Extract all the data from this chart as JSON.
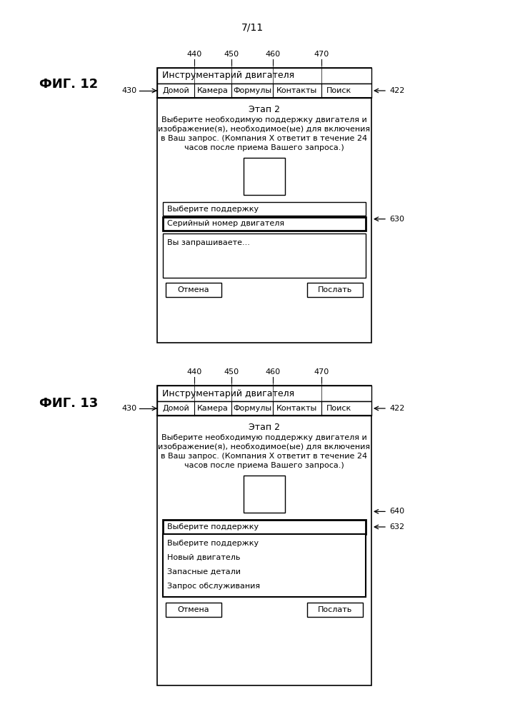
{
  "page_label": "7/11",
  "fig12_label": "ФИГ. 12",
  "fig13_label": "ФИГ. 13",
  "toolbar_text": "Инструментарий двигателя",
  "nav_items": [
    "Домой",
    "Камера",
    "Формулы",
    "Контакты",
    "Поиск"
  ],
  "nav_widths": [
    52,
    52,
    58,
    68,
    48
  ],
  "step_text": "Этап 2",
  "body_lines": [
    "Выберите необходимую поддержку двигателя и",
    "изображение(я), необходимое(ые) для включения",
    "в Ваш запрос. (Компания X ответит в течение 24",
    "часов после приема Вашего запроса.)"
  ],
  "field1_fig12": "Выберите поддержку",
  "field2_fig12": "Серийный номер двигателя",
  "textarea_fig12": "Вы запрашиваете...",
  "btn_cancel": "Отмена",
  "btn_send": "Послать",
  "dropdown_label": "Выберите поддержку",
  "dropdown_items": [
    "Выберите поддержку",
    "Новый двигатель",
    "Запасные детали",
    "Запрос обслуживания"
  ],
  "tick_labels": [
    "440",
    "450",
    "460",
    "470"
  ],
  "label_430": "430",
  "label_422": "422",
  "label_630": "630",
  "label_632": "632",
  "label_640": "640",
  "bg_color": "#ffffff",
  "line_color": "#000000",
  "font_size_body": 8,
  "font_size_nav": 8,
  "font_size_fig": 13,
  "font_size_page": 10,
  "font_size_annot": 8
}
